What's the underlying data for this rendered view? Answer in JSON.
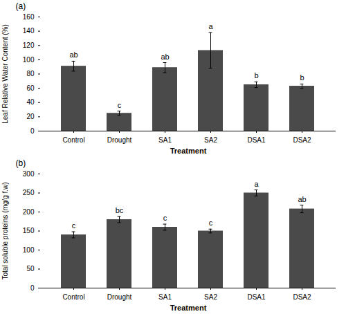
{
  "chart_data": [
    {
      "type": "bar",
      "title": "(a)",
      "categories": [
        "Control",
        "Drought",
        "SA1",
        "SA2",
        "DSA1",
        "DSA2"
      ],
      "values": [
        91,
        25,
        89,
        113,
        65,
        63
      ],
      "errors": [
        7,
        3,
        7,
        25,
        4,
        3
      ],
      "annotations": [
        "ab",
        "c",
        "ab",
        "a",
        "b",
        "b"
      ],
      "ylabel": "Leaf Relative Water Content (%)",
      "xlabel": "Treatment",
      "color": "#4a4a4a",
      "ylim": [
        0,
        160
      ],
      "yticks": [
        0,
        20,
        40,
        60,
        80,
        100,
        120,
        140,
        160
      ]
    },
    {
      "type": "bar",
      "title": "(b)",
      "categories": [
        "Control",
        "Drought",
        "SA1",
        "SA2",
        "DSA1",
        "DSA2"
      ],
      "values": [
        140,
        180,
        160,
        150,
        250,
        208
      ],
      "errors": [
        8,
        8,
        8,
        5,
        8,
        10
      ],
      "annotations": [
        "c",
        "bc",
        "c",
        "c",
        "a",
        "ab"
      ],
      "ylabel": "Total soluble proteins (mg/g f.w)",
      "xlabel": "Treatment",
      "color": "#4a4a4a",
      "ylim": [
        0,
        300
      ],
      "yticks": [
        0,
        50,
        100,
        150,
        200,
        250,
        300
      ]
    }
  ]
}
